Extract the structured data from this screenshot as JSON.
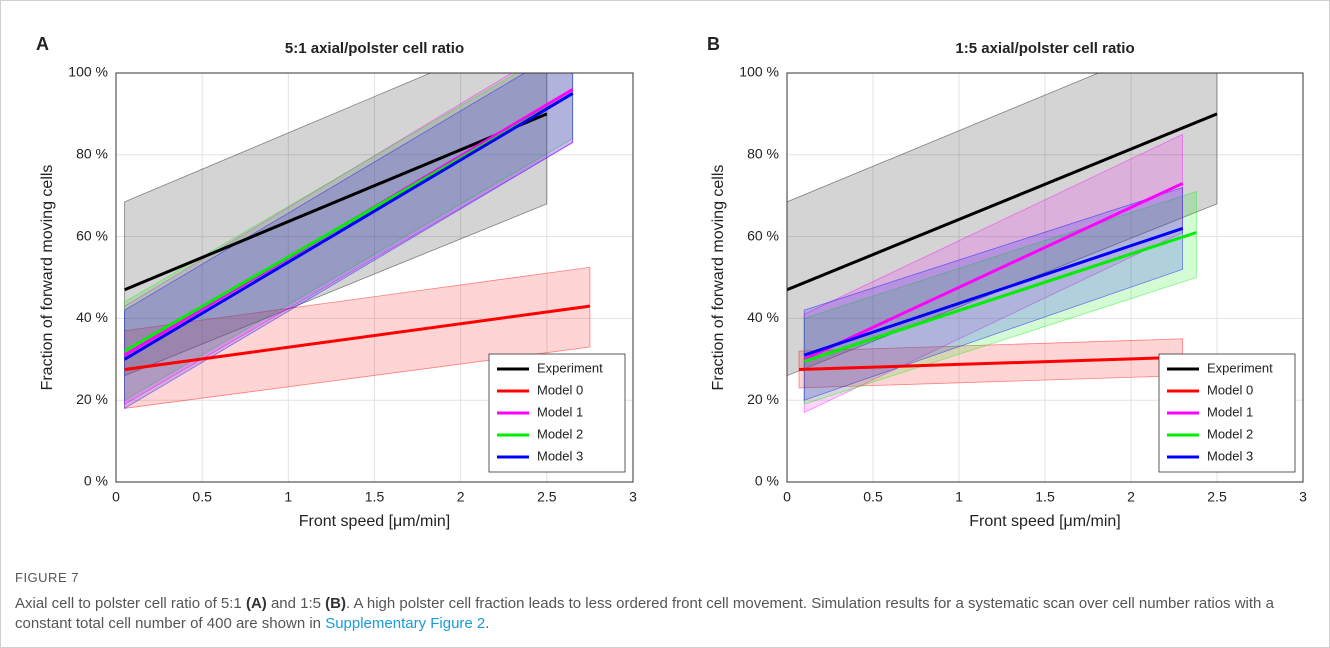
{
  "chart_data": [
    {
      "type": "line",
      "panel_label": "A",
      "title": "5:1 axial/polster cell ratio",
      "x_label": "Front speed [μm/min]",
      "y_label": "Fraction of forward moving cells",
      "xlim": [
        0,
        3
      ],
      "ylim": [
        0,
        100
      ],
      "xticks": [
        0,
        0.5,
        1,
        1.5,
        2,
        2.5,
        3
      ],
      "yticks": [
        {
          "value": 0,
          "label": "0 %"
        },
        {
          "value": 20,
          "label": "20 %"
        },
        {
          "value": 40,
          "label": "40 %"
        },
        {
          "value": 60,
          "label": "60 %"
        },
        {
          "value": 80,
          "label": "80 %"
        },
        {
          "value": 100,
          "label": "100 %"
        }
      ],
      "grid": true,
      "legend": "lower right",
      "series": [
        {
          "name": "Experiment",
          "color": "#000000",
          "x": [
            0.05,
            2.5
          ],
          "values": [
            47,
            90
          ],
          "lower": [
            26,
            68
          ],
          "upper": [
            68.5,
            112
          ]
        },
        {
          "name": "Model 0",
          "color": "#ff0000",
          "x": [
            0.05,
            2.75
          ],
          "values": [
            27.5,
            43
          ],
          "lower": [
            18,
            33
          ],
          "upper": [
            37,
            52.5
          ]
        },
        {
          "name": "Model 1",
          "color": "#ff00ff",
          "x": [
            0.05,
            2.65
          ],
          "values": [
            31,
            96
          ],
          "lower": [
            19,
            83
          ],
          "upper": [
            43,
            109
          ]
        },
        {
          "name": "Model 2",
          "color": "#00ee00",
          "x": [
            0.05,
            2.65
          ],
          "values": [
            32,
            95
          ],
          "lower": [
            20,
            84
          ],
          "upper": [
            44,
            108
          ]
        },
        {
          "name": "Model 3",
          "color": "#0000ff",
          "x": [
            0.05,
            2.65
          ],
          "values": [
            30,
            95
          ],
          "lower": [
            18,
            83
          ],
          "upper": [
            42,
            107
          ]
        }
      ]
    },
    {
      "type": "line",
      "panel_label": "B",
      "title": "1:5 axial/polster cell ratio",
      "x_label": "Front speed [μm/min]",
      "y_label": "Fraction of forward moving cells",
      "xlim": [
        0,
        3
      ],
      "ylim": [
        0,
        100
      ],
      "xticks": [
        0,
        0.5,
        1,
        1.5,
        2,
        2.5,
        3
      ],
      "yticks": [
        {
          "value": 0,
          "label": "0 %"
        },
        {
          "value": 20,
          "label": "20 %"
        },
        {
          "value": 40,
          "label": "40 %"
        },
        {
          "value": 60,
          "label": "60 %"
        },
        {
          "value": 80,
          "label": "80 %"
        },
        {
          "value": 100,
          "label": "100 %"
        }
      ],
      "grid": true,
      "legend": "lower right",
      "series": [
        {
          "name": "Experiment",
          "color": "#000000",
          "x": [
            0,
            2.5
          ],
          "values": [
            47,
            90
          ],
          "lower": [
            26,
            68
          ],
          "upper": [
            68.5,
            112
          ]
        },
        {
          "name": "Model 0",
          "color": "#ff0000",
          "x": [
            0.07,
            2.3
          ],
          "values": [
            27.5,
            30.5
          ],
          "lower": [
            23,
            26
          ],
          "upper": [
            32,
            35
          ]
        },
        {
          "name": "Model 1",
          "color": "#ff00ff",
          "x": [
            0.1,
            2.3
          ],
          "values": [
            30,
            73
          ],
          "lower": [
            17,
            61
          ],
          "upper": [
            41,
            85
          ]
        },
        {
          "name": "Model 2",
          "color": "#00ee00",
          "x": [
            0.1,
            2.38
          ],
          "values": [
            29.5,
            61
          ],
          "lower": [
            19,
            50
          ],
          "upper": [
            40,
            71
          ]
        },
        {
          "name": "Model 3",
          "color": "#0000ff",
          "x": [
            0.1,
            2.3
          ],
          "values": [
            31,
            62
          ],
          "lower": [
            20,
            52
          ],
          "upper": [
            42,
            72
          ]
        }
      ]
    }
  ],
  "caption": {
    "label": "FIGURE 7",
    "parts": [
      "Axial cell to polster cell ratio of 5:1 ",
      "(A)",
      " and 1:5 ",
      "(B)",
      ". A high polster cell fraction leads to less ordered front cell movement. Simulation results for a systematic scan over cell number ratios with a constant total cell number of 400 are shown in ",
      "Supplementary Figure 2",
      "."
    ]
  }
}
